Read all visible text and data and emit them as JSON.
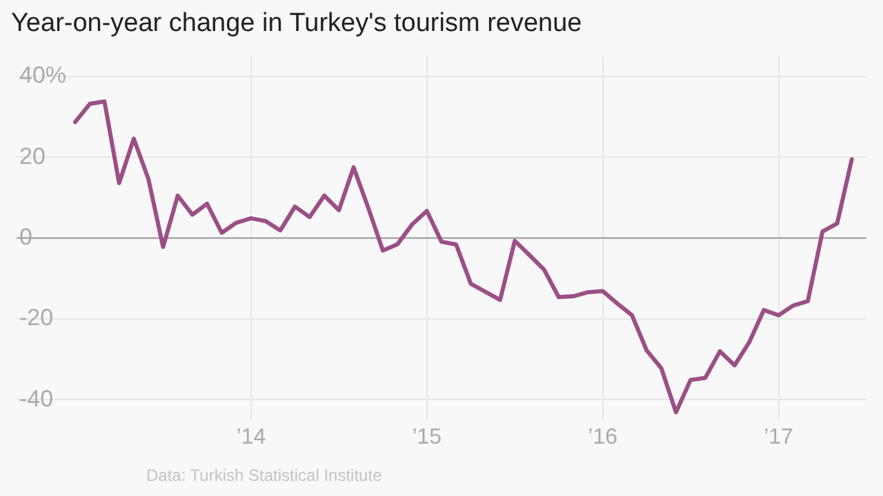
{
  "chart_data": {
    "type": "line",
    "title": "Year-on-year change in Turkey's tourism revenue",
    "x": [
      "2013-01",
      "2013-02",
      "2013-03",
      "2013-04",
      "2013-05",
      "2013-06",
      "2013-07",
      "2013-08",
      "2013-09",
      "2013-10",
      "2013-11",
      "2013-12",
      "2014-01",
      "2014-02",
      "2014-03",
      "2014-04",
      "2014-05",
      "2014-06",
      "2014-07",
      "2014-08",
      "2014-09",
      "2014-10",
      "2014-11",
      "2014-12",
      "2015-01",
      "2015-02",
      "2015-03",
      "2015-04",
      "2015-05",
      "2015-06",
      "2015-07",
      "2015-08",
      "2015-09",
      "2015-10",
      "2015-11",
      "2015-12",
      "2016-01",
      "2016-02",
      "2016-03",
      "2016-04",
      "2016-05",
      "2016-06",
      "2016-07",
      "2016-08",
      "2016-09",
      "2016-10",
      "2016-11",
      "2016-12",
      "2017-01",
      "2017-02",
      "2017-03",
      "2017-04",
      "2017-05",
      "2017-06"
    ],
    "series": [
      {
        "color": "#9b4f86",
        "values": [
          28.7,
          33.2,
          33.8,
          13.6,
          24.6,
          14.6,
          -2.2,
          10.5,
          5.8,
          8.5,
          1.3,
          3.8,
          4.9,
          4.2,
          1.9,
          7.8,
          5.2,
          10.5,
          6.9,
          17.5,
          7.5,
          -3.1,
          -1.5,
          3.4,
          6.7,
          -0.9,
          -1.6,
          -11.3,
          -13.3,
          -15.3,
          -0.7,
          -4.2,
          -7.8,
          -14.6,
          -14.4,
          -13.4,
          -13.1,
          -16.2,
          -19.1,
          -27.8,
          -32.2,
          -43.1,
          -35.1,
          -34.6,
          -28,
          -31.5,
          -25.8,
          -17.8,
          -19.1,
          -16.7,
          -15.6,
          1.6,
          3.6,
          19.5
        ]
      }
    ],
    "xlim": [
      "2012-09",
      "2017-07"
    ],
    "xticks": [
      {
        "value": "2014-01",
        "label": "’14"
      },
      {
        "value": "2015-01",
        "label": "’15"
      },
      {
        "value": "2016-01",
        "label": "’16"
      },
      {
        "value": "2017-01",
        "label": "’17"
      }
    ],
    "ylim": [
      -45,
      45
    ],
    "yticks": [
      {
        "value": 40,
        "label": "40%"
      },
      20,
      0,
      -20,
      -40
    ],
    "ref_lines": [
      {
        "axis": "y",
        "value": 0,
        "color": "#999999"
      }
    ],
    "grid": true,
    "legend": false,
    "marker": "none",
    "line_style": "solid",
    "annotations": [
      "Data: Turkish Statistical Institute"
    ]
  }
}
